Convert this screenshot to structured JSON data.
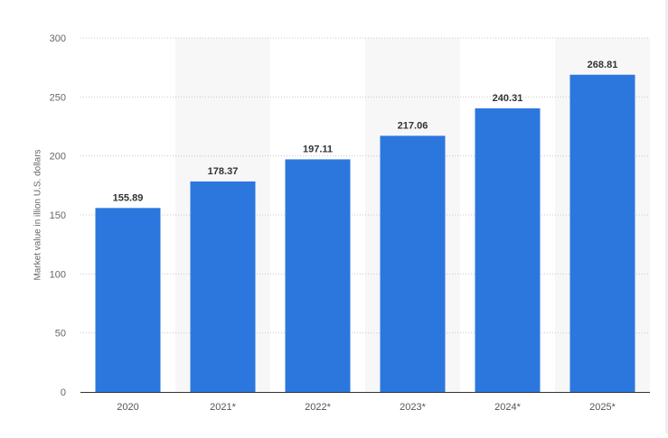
{
  "chart_data": {
    "type": "bar",
    "title": "",
    "xlabel": "",
    "ylabel": "Market value in  illion U.S. dollars",
    "categories": [
      "2020",
      "2021*",
      "2022*",
      "2023*",
      "2024*",
      "2025*"
    ],
    "values": [
      155.89,
      178.37,
      197.11,
      217.06,
      240.31,
      268.81
    ],
    "value_labels": [
      "155.89",
      "178.37",
      "197.11",
      "217.06",
      "240.31",
      "268.81"
    ],
    "ylim": [
      0,
      300
    ],
    "yticks": [
      0,
      50,
      100,
      150,
      200,
      250,
      300
    ],
    "grid": true,
    "grid_style": "dotted",
    "legend": "none",
    "bar_color": "#2b77de",
    "band_color": "#f7f7f7"
  }
}
